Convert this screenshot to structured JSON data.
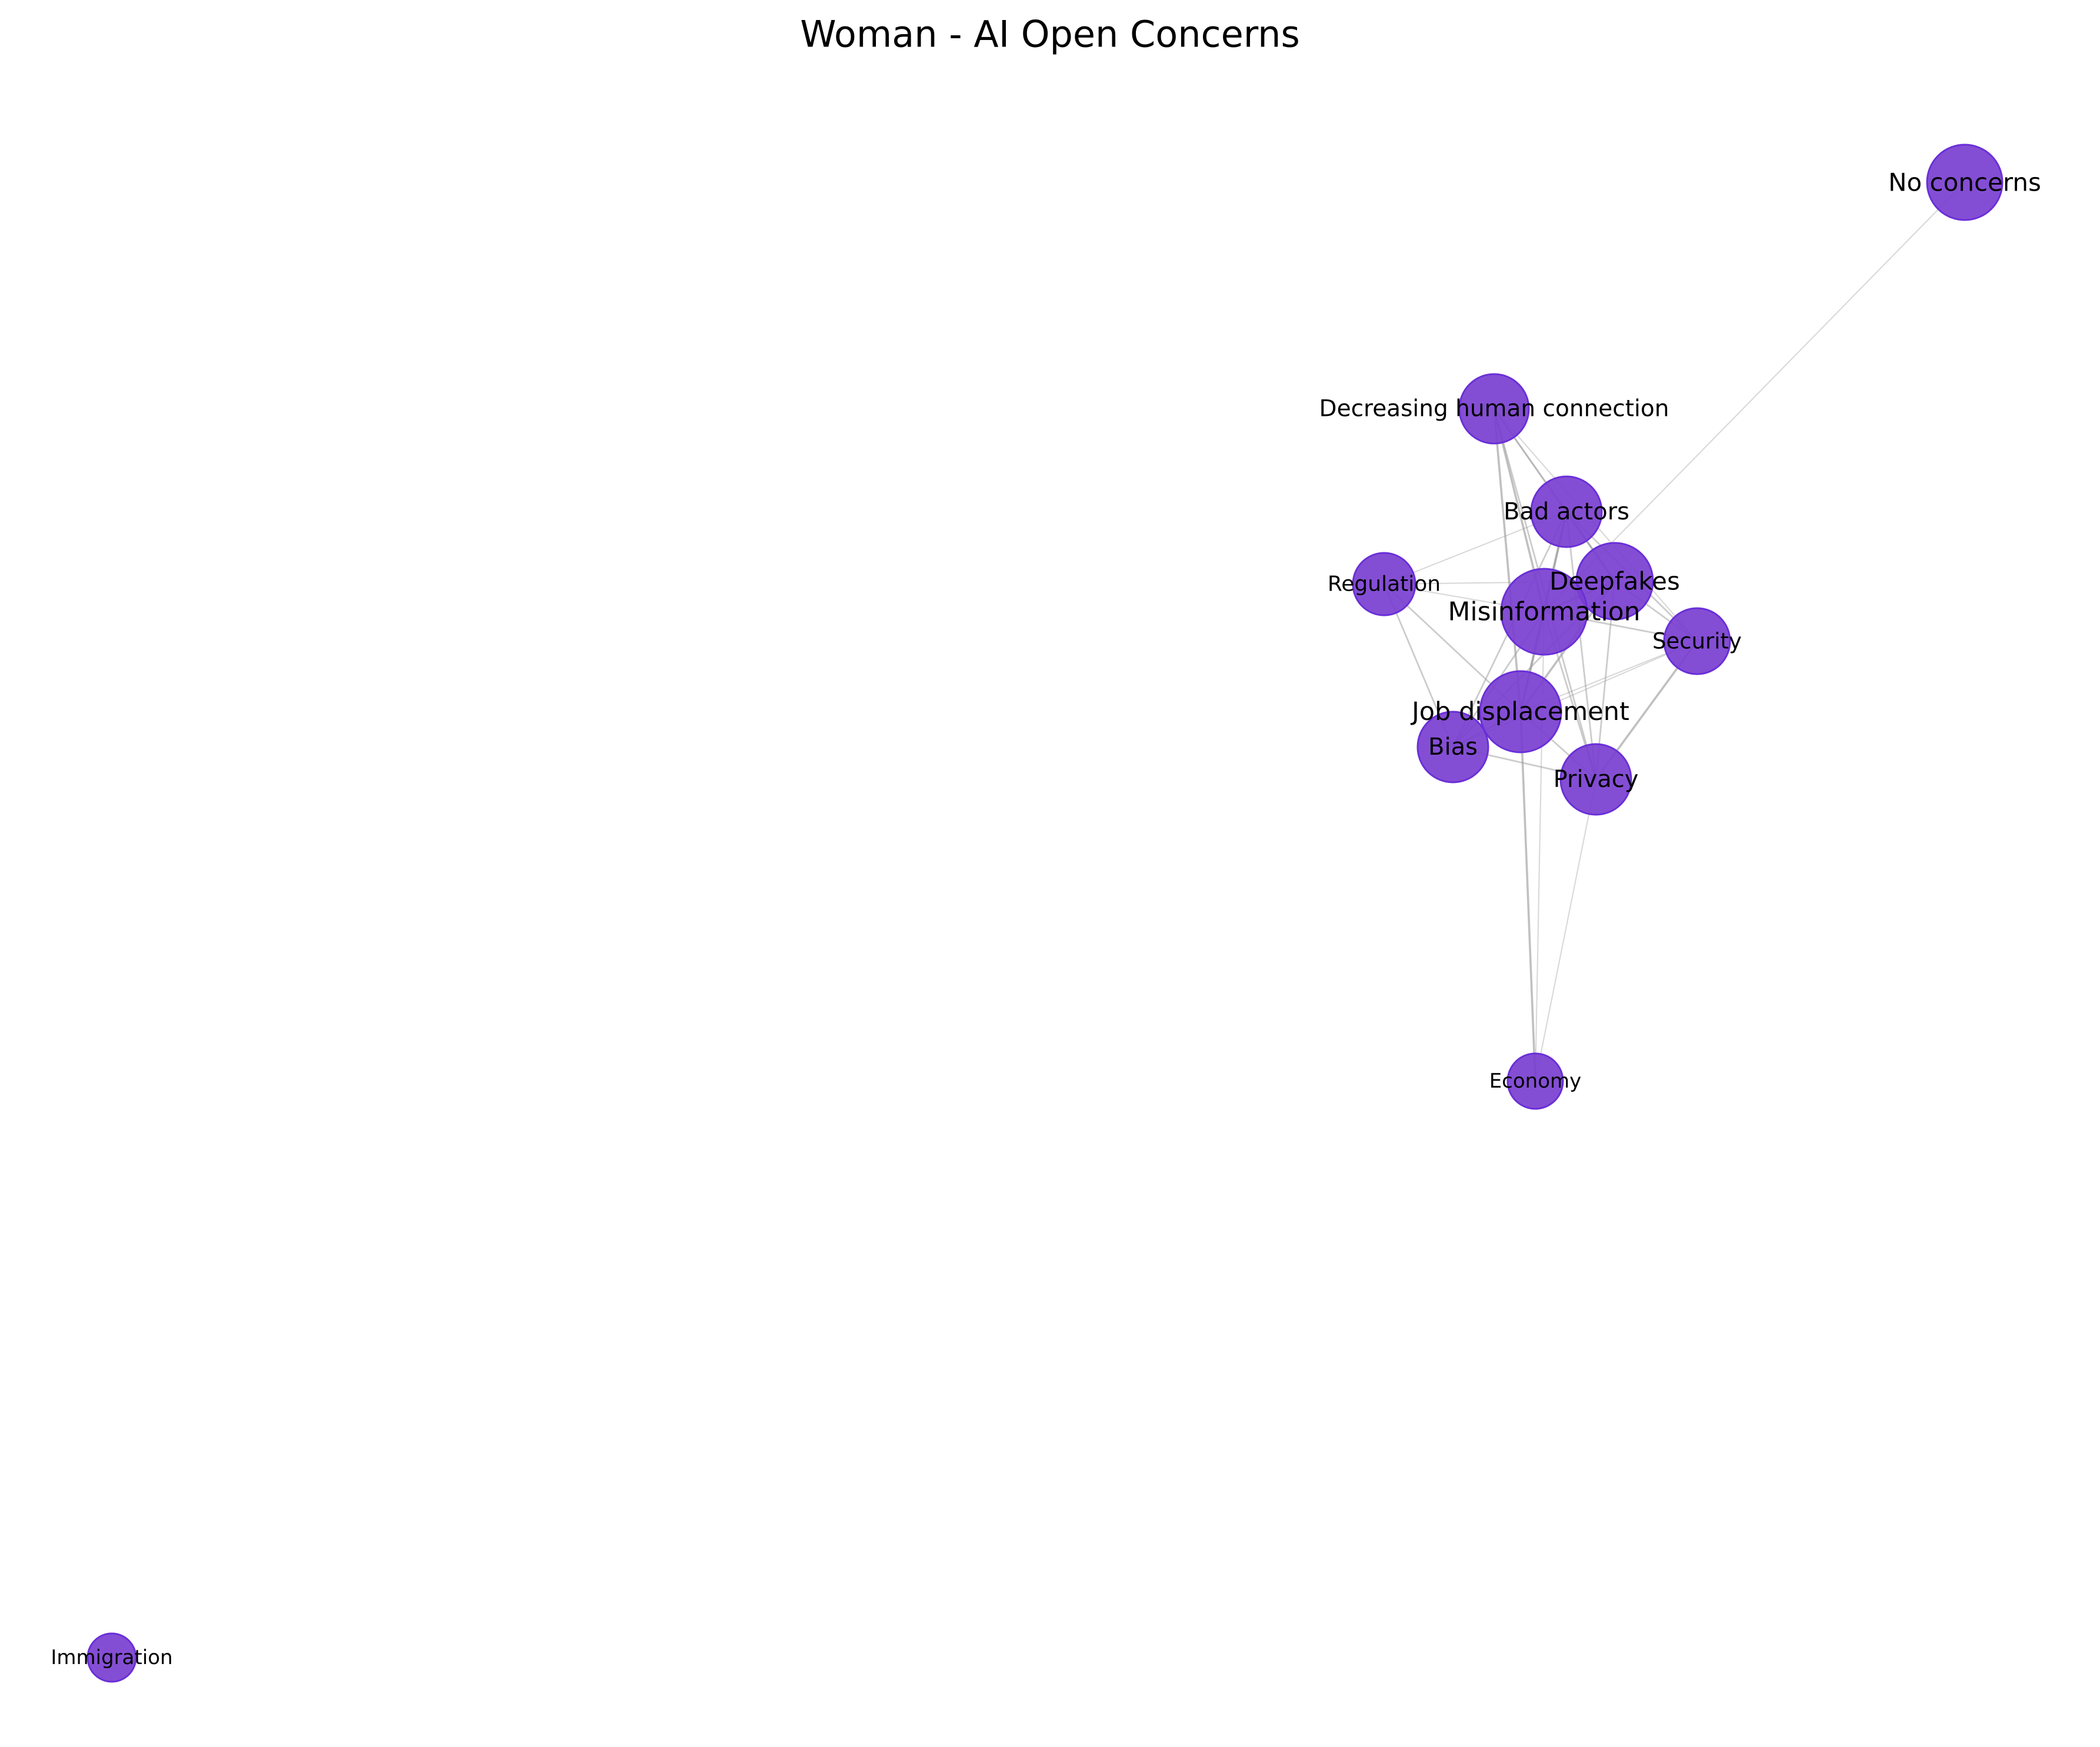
{
  "title": "Woman - AI Open Concerns",
  "colors": {
    "node_fill": "#7a3fd0",
    "node_stroke": "#6a2fd8",
    "edge": "#a0a0a0",
    "background": "#ffffff"
  },
  "nodes": [
    {
      "id": "no-concerns",
      "label": "No concerns"
    },
    {
      "id": "decreasing-human-connection",
      "label": "Decreasing human connection"
    },
    {
      "id": "bad-actors",
      "label": "Bad actors"
    },
    {
      "id": "deepfakes",
      "label": "Deepfakes"
    },
    {
      "id": "regulation",
      "label": "Regulation"
    },
    {
      "id": "misinformation",
      "label": "Misinformation"
    },
    {
      "id": "security",
      "label": "Security"
    },
    {
      "id": "job-displacement",
      "label": "Job displacement"
    },
    {
      "id": "bias",
      "label": "Bias"
    },
    {
      "id": "privacy",
      "label": "Privacy"
    },
    {
      "id": "economy",
      "label": "Economy"
    },
    {
      "id": "immigration",
      "label": "Immigration"
    }
  ],
  "edges": [
    {
      "source": "no-concerns",
      "target": "misinformation",
      "weight": 1
    },
    {
      "source": "decreasing-human-connection",
      "target": "misinformation",
      "weight": 3
    },
    {
      "source": "decreasing-human-connection",
      "target": "job-displacement",
      "weight": 3
    },
    {
      "source": "decreasing-human-connection",
      "target": "bad-actors",
      "weight": 2
    },
    {
      "source": "decreasing-human-connection",
      "target": "deepfakes",
      "weight": 2
    },
    {
      "source": "decreasing-human-connection",
      "target": "privacy",
      "weight": 2
    },
    {
      "source": "decreasing-human-connection",
      "target": "security",
      "weight": 1
    },
    {
      "source": "bad-actors",
      "target": "regulation",
      "weight": 1
    },
    {
      "source": "bad-actors",
      "target": "misinformation",
      "weight": 3
    },
    {
      "source": "bad-actors",
      "target": "deepfakes",
      "weight": 3
    },
    {
      "source": "bad-actors",
      "target": "job-displacement",
      "weight": 3
    },
    {
      "source": "bad-actors",
      "target": "bias",
      "weight": 2
    },
    {
      "source": "bad-actors",
      "target": "privacy",
      "weight": 2
    },
    {
      "source": "bad-actors",
      "target": "security",
      "weight": 2
    },
    {
      "source": "deepfakes",
      "target": "misinformation",
      "weight": 3
    },
    {
      "source": "deepfakes",
      "target": "job-displacement",
      "weight": 3
    },
    {
      "source": "deepfakes",
      "target": "security",
      "weight": 2
    },
    {
      "source": "deepfakes",
      "target": "privacy",
      "weight": 2
    },
    {
      "source": "deepfakes",
      "target": "bias",
      "weight": 2
    },
    {
      "source": "regulation",
      "target": "misinformation",
      "weight": 1
    },
    {
      "source": "regulation",
      "target": "bias",
      "weight": 2
    },
    {
      "source": "regulation",
      "target": "job-displacement",
      "weight": 2
    },
    {
      "source": "regulation",
      "target": "deepfakes",
      "weight": 1
    },
    {
      "source": "misinformation",
      "target": "job-displacement",
      "weight": 3
    },
    {
      "source": "misinformation",
      "target": "security",
      "weight": 2
    },
    {
      "source": "misinformation",
      "target": "privacy",
      "weight": 2
    },
    {
      "source": "misinformation",
      "target": "bias",
      "weight": 2
    },
    {
      "source": "misinformation",
      "target": "economy",
      "weight": 1
    },
    {
      "source": "security",
      "target": "privacy",
      "weight": 3
    },
    {
      "source": "security",
      "target": "job-displacement",
      "weight": 1
    },
    {
      "source": "security",
      "target": "bias",
      "weight": 1
    },
    {
      "source": "job-displacement",
      "target": "privacy",
      "weight": 2
    },
    {
      "source": "job-displacement",
      "target": "bias",
      "weight": 2
    },
    {
      "source": "job-displacement",
      "target": "economy",
      "weight": 3
    },
    {
      "source": "bias",
      "target": "privacy",
      "weight": 2
    },
    {
      "source": "privacy",
      "target": "economy",
      "weight": 1
    }
  ]
}
